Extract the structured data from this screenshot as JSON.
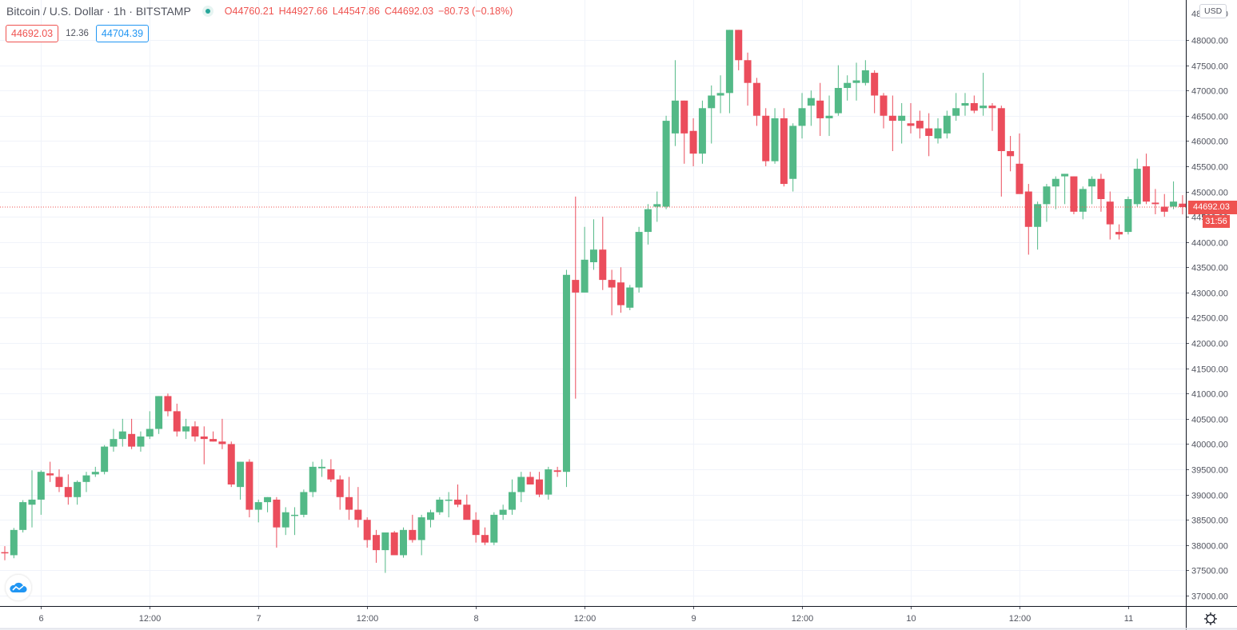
{
  "header": {
    "title": "Bitcoin / U.S. Dollar · 1h · BITSTAMP",
    "open_label": "O",
    "open": "44760.21",
    "high_label": "H",
    "high": "44927.66",
    "low_label": "L",
    "low": "44547.86",
    "close_label": "C",
    "close": "44692.03",
    "change": "−80.73 (−0.18%)",
    "bid": "44692.03",
    "spread": "12.36",
    "ask": "44704.39"
  },
  "price_axis": {
    "currency": "USD",
    "last_price": "44692.03",
    "countdown": "31:56"
  },
  "colors": {
    "up": "#53b987",
    "down": "#eb4d5c",
    "grid": "#f0f3fa",
    "axis_text": "#50535e",
    "last_price": "#ef5350",
    "bid": "#ef5350",
    "ask": "#2196f3"
  },
  "chart_data": {
    "type": "candlestick",
    "title": "Bitcoin / U.S. Dollar · 1h · BITSTAMP",
    "xlabel": "",
    "ylabel": "USD",
    "ylim": [
      36800,
      48500
    ],
    "yticks": [
      37000,
      37500,
      38000,
      38500,
      39000,
      39500,
      40000,
      40500,
      41000,
      41500,
      42000,
      42500,
      43000,
      43500,
      44000,
      44500,
      45000,
      45500,
      46000,
      46500,
      47000,
      47500,
      48000
    ],
    "ytick_labels": [
      "37000.00",
      "37500.00",
      "38000.00",
      "38500.00",
      "39000.00",
      "39500.00",
      "40000.00",
      "40500.00",
      "41000.00",
      "41500.00",
      "42000.00",
      "42500.00",
      "43000.00",
      "43500.00",
      "44000.00",
      "44500.00",
      "45000.00",
      "45500.00",
      "46000.00",
      "46500.00",
      "47000.00",
      "47500.00",
      "48000.00"
    ],
    "xticks": [
      {
        "label": "6",
        "index": 2
      },
      {
        "label": "12:00",
        "index": 14
      },
      {
        "label": "7",
        "index": 26
      },
      {
        "label": "12:00",
        "index": 38
      },
      {
        "label": "8",
        "index": 50
      },
      {
        "label": "12:00",
        "index": 62
      },
      {
        "label": "9",
        "index": 74
      },
      {
        "label": "12:00",
        "index": 86
      },
      {
        "label": "10",
        "index": 98
      },
      {
        "label": "12:00",
        "index": 110
      },
      {
        "label": "11",
        "index": 122
      }
    ],
    "interval": "1h",
    "grid": true,
    "last_price_line": 44692.03,
    "candles": [
      [
        37860,
        37980,
        37700,
        37840
      ],
      [
        37800,
        38340,
        37740,
        38300
      ],
      [
        38300,
        38890,
        38250,
        38850
      ],
      [
        38800,
        39480,
        38350,
        38900
      ],
      [
        38900,
        39480,
        38600,
        39450
      ],
      [
        39420,
        39650,
        39250,
        39380
      ],
      [
        39350,
        39500,
        39050,
        39150
      ],
      [
        39150,
        39400,
        38800,
        38950
      ],
      [
        38950,
        39280,
        38800,
        39250
      ],
      [
        39250,
        39450,
        39050,
        39380
      ],
      [
        39400,
        39550,
        39350,
        39450
      ],
      [
        39450,
        39980,
        39400,
        39950
      ],
      [
        39950,
        40300,
        39850,
        40100
      ],
      [
        40100,
        40500,
        39950,
        40250
      ],
      [
        40200,
        40500,
        39900,
        39950
      ],
      [
        39950,
        40250,
        39850,
        40150
      ],
      [
        40150,
        40650,
        40100,
        40300
      ],
      [
        40300,
        40950,
        40200,
        40950
      ],
      [
        40950,
        41000,
        40550,
        40650
      ],
      [
        40650,
        40800,
        40150,
        40250
      ],
      [
        40250,
        40500,
        40100,
        40350
      ],
      [
        40350,
        40450,
        40050,
        40150
      ],
      [
        40150,
        40350,
        39600,
        40100
      ],
      [
        40100,
        40250,
        40050,
        40050
      ],
      [
        40050,
        40500,
        39900,
        40000
      ],
      [
        40000,
        40050,
        39150,
        39200
      ],
      [
        39150,
        39650,
        38900,
        39650
      ],
      [
        39650,
        39700,
        38550,
        38700
      ],
      [
        38700,
        38900,
        38450,
        38850
      ],
      [
        38850,
        38950,
        38650,
        38950
      ],
      [
        38900,
        38950,
        37950,
        38350
      ],
      [
        38350,
        38750,
        38200,
        38650
      ],
      [
        38600,
        38750,
        38200,
        38600
      ],
      [
        38600,
        39100,
        38550,
        39050
      ],
      [
        39050,
        39650,
        38950,
        39550
      ],
      [
        39520,
        39700,
        39350,
        39550
      ],
      [
        39500,
        39700,
        39250,
        39300
      ],
      [
        39300,
        39380,
        38700,
        38950
      ],
      [
        38950,
        39350,
        38500,
        38700
      ],
      [
        38700,
        39150,
        38350,
        38500
      ],
      [
        38500,
        38550,
        37950,
        38100
      ],
      [
        38200,
        38300,
        37650,
        37900
      ],
      [
        37900,
        38250,
        37450,
        38250
      ],
      [
        38250,
        38280,
        37850,
        37800
      ],
      [
        37800,
        38350,
        37750,
        38300
      ],
      [
        38300,
        38600,
        38050,
        38100
      ],
      [
        38100,
        38600,
        37800,
        38550
      ],
      [
        38500,
        38700,
        38350,
        38650
      ],
      [
        38650,
        38950,
        38600,
        38900
      ],
      [
        38900,
        39050,
        38550,
        38900
      ],
      [
        38900,
        39200,
        38750,
        38800
      ],
      [
        38800,
        39000,
        38550,
        38500
      ],
      [
        38500,
        38650,
        38050,
        38200
      ],
      [
        38200,
        38350,
        38000,
        38050
      ],
      [
        38050,
        38650,
        38000,
        38600
      ],
      [
        38600,
        38800,
        38500,
        38700
      ],
      [
        38700,
        39300,
        38600,
        39050
      ],
      [
        39050,
        39450,
        38850,
        39350
      ],
      [
        39350,
        39450,
        39200,
        39200
      ],
      [
        39300,
        39450,
        38950,
        39000
      ],
      [
        39000,
        39550,
        38900,
        39500
      ],
      [
        39480,
        39550,
        39350,
        39450
      ],
      [
        39450,
        43450,
        39150,
        43350
      ],
      [
        43250,
        44900,
        40900,
        43000
      ],
      [
        43000,
        44300,
        43000,
        43650
      ],
      [
        43600,
        44450,
        43450,
        43850
      ],
      [
        43850,
        44500,
        43050,
        43250
      ],
      [
        43250,
        43450,
        42550,
        43100
      ],
      [
        43200,
        43500,
        42600,
        42750
      ],
      [
        42700,
        43150,
        42650,
        43100
      ],
      [
        43100,
        44300,
        43000,
        44200
      ],
      [
        44200,
        44750,
        43950,
        44650
      ],
      [
        44700,
        45000,
        44400,
        44750
      ],
      [
        44700,
        46500,
        44650,
        46400
      ],
      [
        46150,
        47600,
        45900,
        46800
      ],
      [
        46800,
        46800,
        45550,
        46150
      ],
      [
        46200,
        46450,
        45500,
        45750
      ],
      [
        45750,
        46800,
        45550,
        46650
      ],
      [
        46650,
        47100,
        45950,
        46900
      ],
      [
        46900,
        47300,
        46550,
        46950
      ],
      [
        46950,
        48200,
        46550,
        48200
      ],
      [
        48200,
        48200,
        47400,
        47600
      ],
      [
        47600,
        47750,
        46700,
        47150
      ],
      [
        47150,
        47250,
        46300,
        46500
      ],
      [
        46500,
        46650,
        45500,
        45600
      ],
      [
        45600,
        46650,
        45550,
        46450
      ],
      [
        46450,
        46650,
        45100,
        45150
      ],
      [
        45250,
        46350,
        45000,
        46300
      ],
      [
        46300,
        46950,
        46050,
        46650
      ],
      [
        46700,
        47000,
        46300,
        46850
      ],
      [
        46800,
        47150,
        46100,
        46450
      ],
      [
        46450,
        46900,
        46100,
        46500
      ],
      [
        46550,
        47500,
        46500,
        47050
      ],
      [
        47050,
        47300,
        46800,
        47150
      ],
      [
        47150,
        47550,
        46800,
        47200
      ],
      [
        47150,
        47600,
        47100,
        47400
      ],
      [
        47350,
        47400,
        46550,
        46900
      ],
      [
        46900,
        46950,
        46250,
        46500
      ],
      [
        46500,
        46900,
        45800,
        46400
      ],
      [
        46400,
        46750,
        45950,
        46500
      ],
      [
        46350,
        46750,
        46150,
        46300
      ],
      [
        46400,
        46600,
        46050,
        46250
      ],
      [
        46250,
        46550,
        45700,
        46100
      ],
      [
        46050,
        46450,
        45950,
        46250
      ],
      [
        46150,
        46600,
        46050,
        46500
      ],
      [
        46500,
        46950,
        46400,
        46650
      ],
      [
        46700,
        46950,
        46500,
        46750
      ],
      [
        46750,
        46900,
        46550,
        46600
      ],
      [
        46650,
        47350,
        46500,
        46700
      ],
      [
        46700,
        46750,
        46200,
        46650
      ],
      [
        46650,
        46700,
        44900,
        45800
      ],
      [
        45800,
        46100,
        45400,
        45700
      ],
      [
        45550,
        46150,
        45050,
        44950
      ],
      [
        45000,
        45150,
        43750,
        44300
      ],
      [
        44300,
        44800,
        43850,
        44750
      ],
      [
        44750,
        45150,
        44400,
        45100
      ],
      [
        45100,
        45300,
        44650,
        45250
      ],
      [
        45300,
        45350,
        44750,
        45350
      ],
      [
        45300,
        45300,
        44550,
        44600
      ],
      [
        44600,
        45100,
        44450,
        45050
      ],
      [
        45100,
        45300,
        44750,
        45250
      ],
      [
        45250,
        45350,
        44600,
        44850
      ],
      [
        44800,
        45000,
        44050,
        44350
      ],
      [
        44200,
        44350,
        44050,
        44150
      ],
      [
        44200,
        44900,
        44150,
        44850
      ],
      [
        44750,
        45650,
        44700,
        45450
      ],
      [
        45500,
        45750,
        44750,
        44800
      ],
      [
        44780,
        45050,
        44550,
        44750
      ],
      [
        44700,
        44950,
        44500,
        44600
      ],
      [
        44700,
        45200,
        44650,
        44800
      ],
      [
        44760,
        44928,
        44548,
        44692
      ]
    ]
  }
}
